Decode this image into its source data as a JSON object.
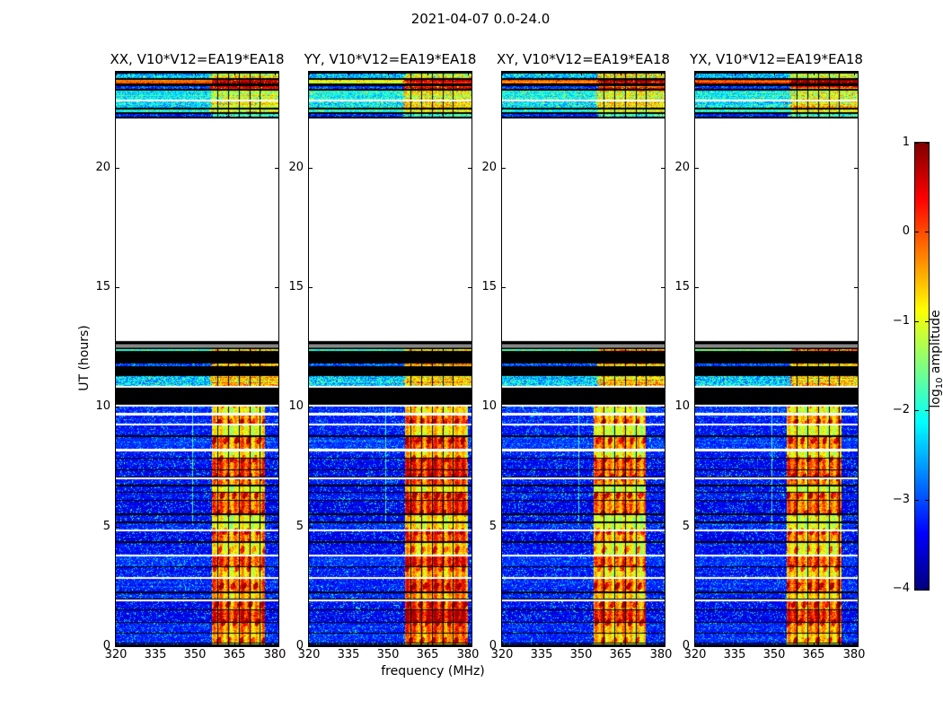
{
  "chart_data": {
    "type": "heatmap",
    "title": "2021-04-07 0.0-24.0",
    "xlabel": "frequency (MHz)",
    "ylabel": "UT (hours)",
    "x_range_mhz": [
      320,
      381.5
    ],
    "y_range_hours": [
      0,
      24
    ],
    "x_tick_labels": [
      "320",
      "335",
      "350",
      "365",
      "380"
    ],
    "x_tick_values": [
      320,
      335,
      350,
      365,
      380
    ],
    "y_tick_labels": [
      "0",
      "5",
      "10",
      "15",
      "20"
    ],
    "y_tick_values": [
      0,
      5,
      10,
      15,
      20
    ],
    "panels": [
      {
        "key": "xx",
        "label": "XX, V10*V12=EA19*EA18",
        "band_mhz": [
          356.5,
          376.5
        ],
        "band_boost": 0.02,
        "strip_row3_t0": 0.76,
        "noise_seed": 101
      },
      {
        "key": "yy",
        "label": "YY, V10*V12=EA19*EA18",
        "band_mhz": [
          356.5,
          380.0
        ],
        "band_boost": 0.07,
        "strip_row3_t0": 0.62,
        "noise_seed": 202
      },
      {
        "key": "xy",
        "label": "XY, V10*V12=EA19*EA18",
        "band_mhz": [
          354.5,
          374.5
        ],
        "band_boost": 0.0,
        "strip_row3_t0": 0.73,
        "noise_seed": 303
      },
      {
        "key": "yx",
        "label": "YX, V10*V12=EA19*EA18",
        "band_mhz": [
          354.5,
          375.5
        ],
        "band_boost": 0.01,
        "strip_row3_t0": 0.73,
        "noise_seed": 404
      }
    ],
    "colorbar": {
      "label_pre": "log",
      "label_sub": "10",
      "label_post": " amplitude",
      "colormap": "jet",
      "value_range": [
        -4,
        1
      ],
      "tick_labels": [
        "1",
        "0",
        "−1",
        "−2",
        "−3",
        "−4"
      ],
      "tick_values": [
        1,
        0,
        -1,
        -2,
        -3,
        -4
      ]
    },
    "time_structure": {
      "white_gap_hours": [
        13.0,
        22.05
      ],
      "top_strip_hours": [
        22.05,
        24.0
      ],
      "banded_black_hours": [
        10.05,
        13.0
      ],
      "main_data_hours": [
        0.0,
        10.05
      ],
      "rfi_gridline_mhz": [
        358.5,
        362.5,
        366.5,
        370.5,
        374.5
      ],
      "strip_band_start_mhz": 356,
      "top_strip_rows": [
        {
          "h": 2,
          "type": "black"
        },
        {
          "h": 5,
          "type": "noise",
          "t0": 0.3,
          "v0": 0.13,
          "t1": 0.6,
          "v1": 0.14
        },
        {
          "h": 2,
          "type": "black"
        },
        {
          "h": 4,
          "type": "noise",
          "t0": 0.74,
          "v0": 0.05,
          "t1": 0.94,
          "v1": 0.04
        },
        {
          "h": 3,
          "type": "black"
        },
        {
          "h": 3,
          "type": "noise",
          "t0": 0.17,
          "v0": 0.1,
          "t1": 0.8,
          "v1": 0.07
        },
        {
          "h": 2,
          "type": "black"
        },
        {
          "h": 10,
          "type": "noise",
          "t0": 0.37,
          "v0": 0.11,
          "t1": 0.6,
          "v1": 0.13
        },
        {
          "h": 2,
          "type": "white"
        },
        {
          "h": 7,
          "type": "noise",
          "t0": 0.34,
          "v0": 0.13,
          "t1": 0.64,
          "v1": 0.12
        },
        {
          "h": 2,
          "type": "black"
        },
        {
          "h": 3,
          "type": "noise",
          "t0": 0.39,
          "v0": 0.09,
          "t1": 0.62,
          "v1": 0.1
        },
        {
          "h": 2,
          "type": "black"
        },
        {
          "h": 3,
          "type": "noise",
          "t0": 0.16,
          "v0": 0.09,
          "t1": 0.45,
          "v1": 0.12
        },
        {
          "h": 2,
          "type": "black"
        }
      ],
      "mid_rows": [
        {
          "h": 7,
          "type": "white"
        },
        {
          "h": 4,
          "type": "black"
        },
        {
          "h": 1,
          "type": "white"
        },
        {
          "h": 1,
          "type": "black"
        },
        {
          "h": 1,
          "type": "white"
        },
        {
          "h": 2,
          "type": "black"
        },
        {
          "h": 2,
          "type": "noise",
          "t0": 0.45,
          "v0": 0.07,
          "t1": 0.72,
          "v1": 0.1
        },
        {
          "h": 14,
          "type": "black"
        },
        {
          "h": 3,
          "type": "noise",
          "t0": 0.2,
          "v0": 0.1,
          "t1": 0.7,
          "v1": 0.1
        },
        {
          "h": 11,
          "type": "black"
        },
        {
          "h": 11,
          "type": "noise",
          "t0": 0.31,
          "v0": 0.14,
          "t1": 0.66,
          "v1": 0.12
        },
        {
          "h": 2,
          "type": "white"
        },
        {
          "h": 19,
          "type": "black"
        },
        {
          "h": 2,
          "type": "white"
        }
      ],
      "main_blocks": {
        "y0_rel": 373,
        "y1_rel": 640,
        "layout_seed": 1337,
        "block_h_min": 6,
        "block_h_span": 9
      }
    }
  }
}
